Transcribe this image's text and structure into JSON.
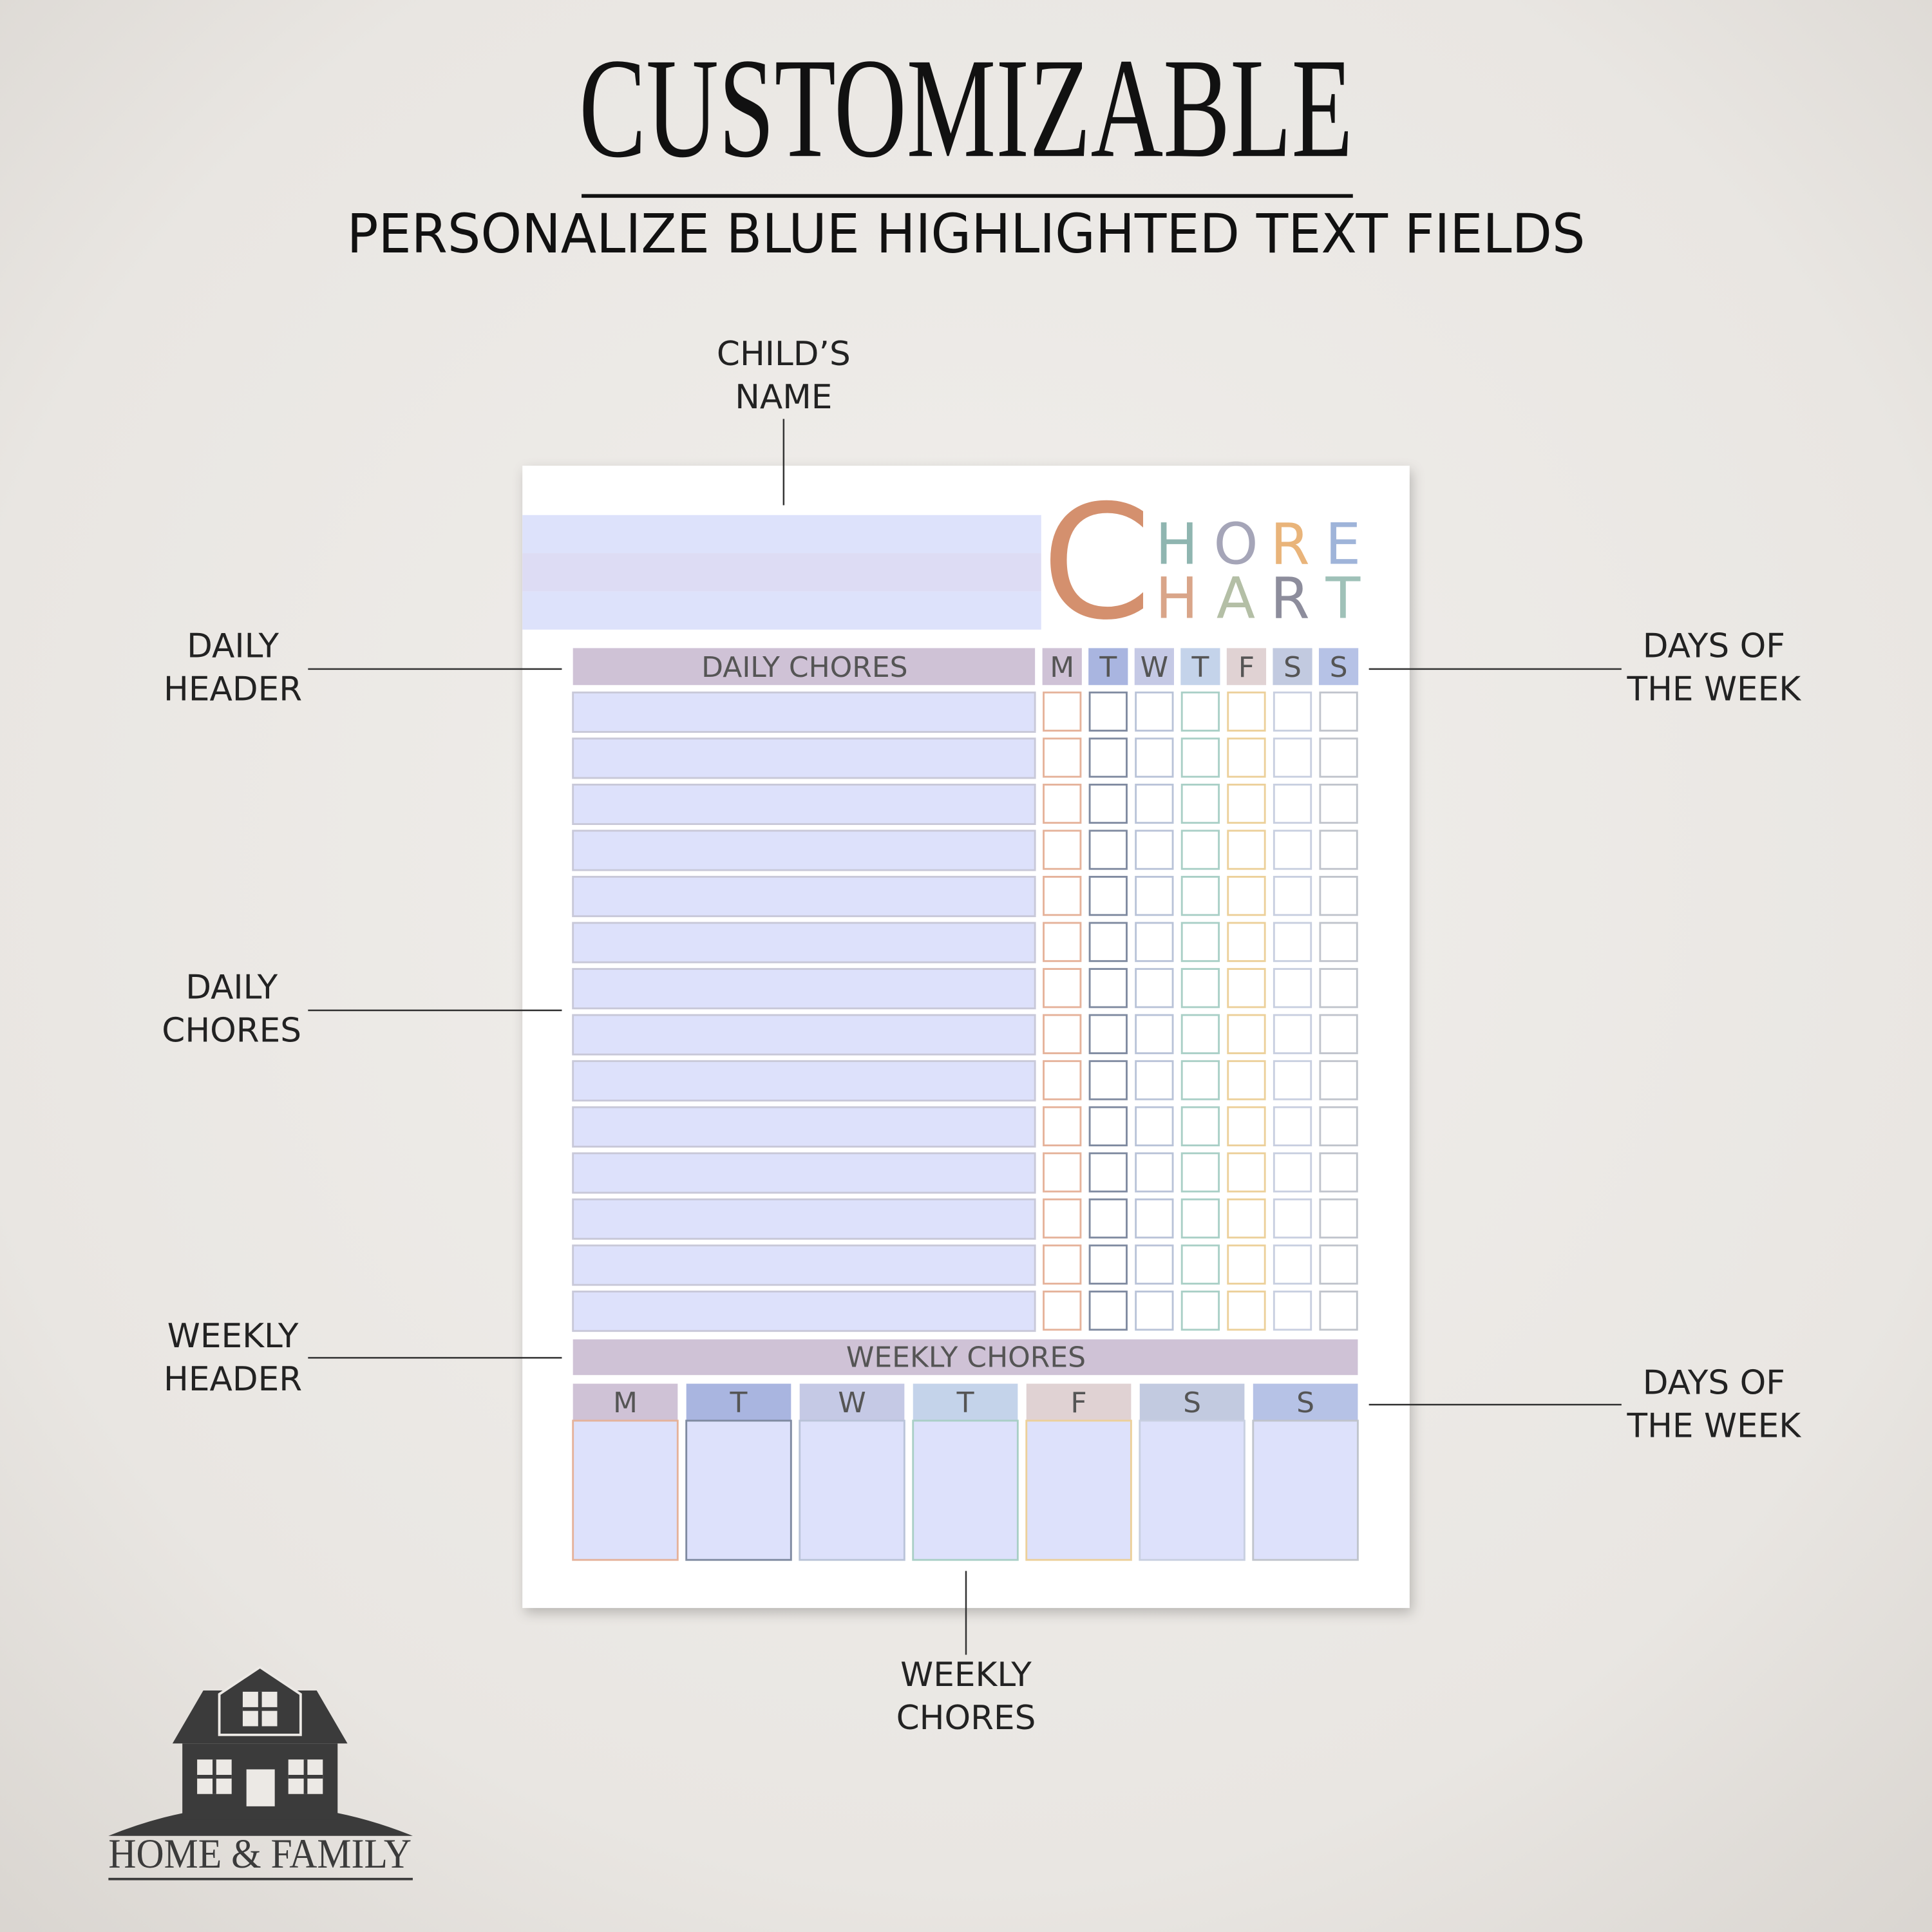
{
  "header": {
    "title": "CUSTOMIZABLE",
    "subtitle": "PERSONALIZE BLUE HIGHLIGHTED TEXT FIELDS"
  },
  "callouts": [
    {
      "lines": [
        "CHILD’S",
        "NAME"
      ]
    },
    {
      "lines": [
        "DAILY",
        "HEADER"
      ]
    },
    {
      "lines": [
        "DAILY",
        "CHORES"
      ]
    },
    {
      "lines": [
        "WEEKLY",
        "HEADER"
      ]
    },
    {
      "lines": [
        "DAYS OF",
        "THE WEEK"
      ]
    },
    {
      "lines": [
        "DAYS OF",
        "THE WEEK"
      ]
    },
    {
      "lines": [
        "WEEKLY",
        "CHORES"
      ]
    }
  ],
  "chart": {
    "logo_first": "C",
    "logo_top": [
      "H",
      "O",
      "R",
      "E"
    ],
    "logo_bottom": [
      "H",
      "A",
      "R",
      "T"
    ],
    "daily_header": "DAILY CHORES",
    "days": [
      "M",
      "T",
      "W",
      "T",
      "F",
      "S",
      "S"
    ],
    "weekly_header": "WEEKLY CHORES",
    "weekly_days": [
      "M",
      "T",
      "W",
      "T",
      "F",
      "S",
      "S"
    ]
  },
  "brand": "HOME & FAMILY"
}
